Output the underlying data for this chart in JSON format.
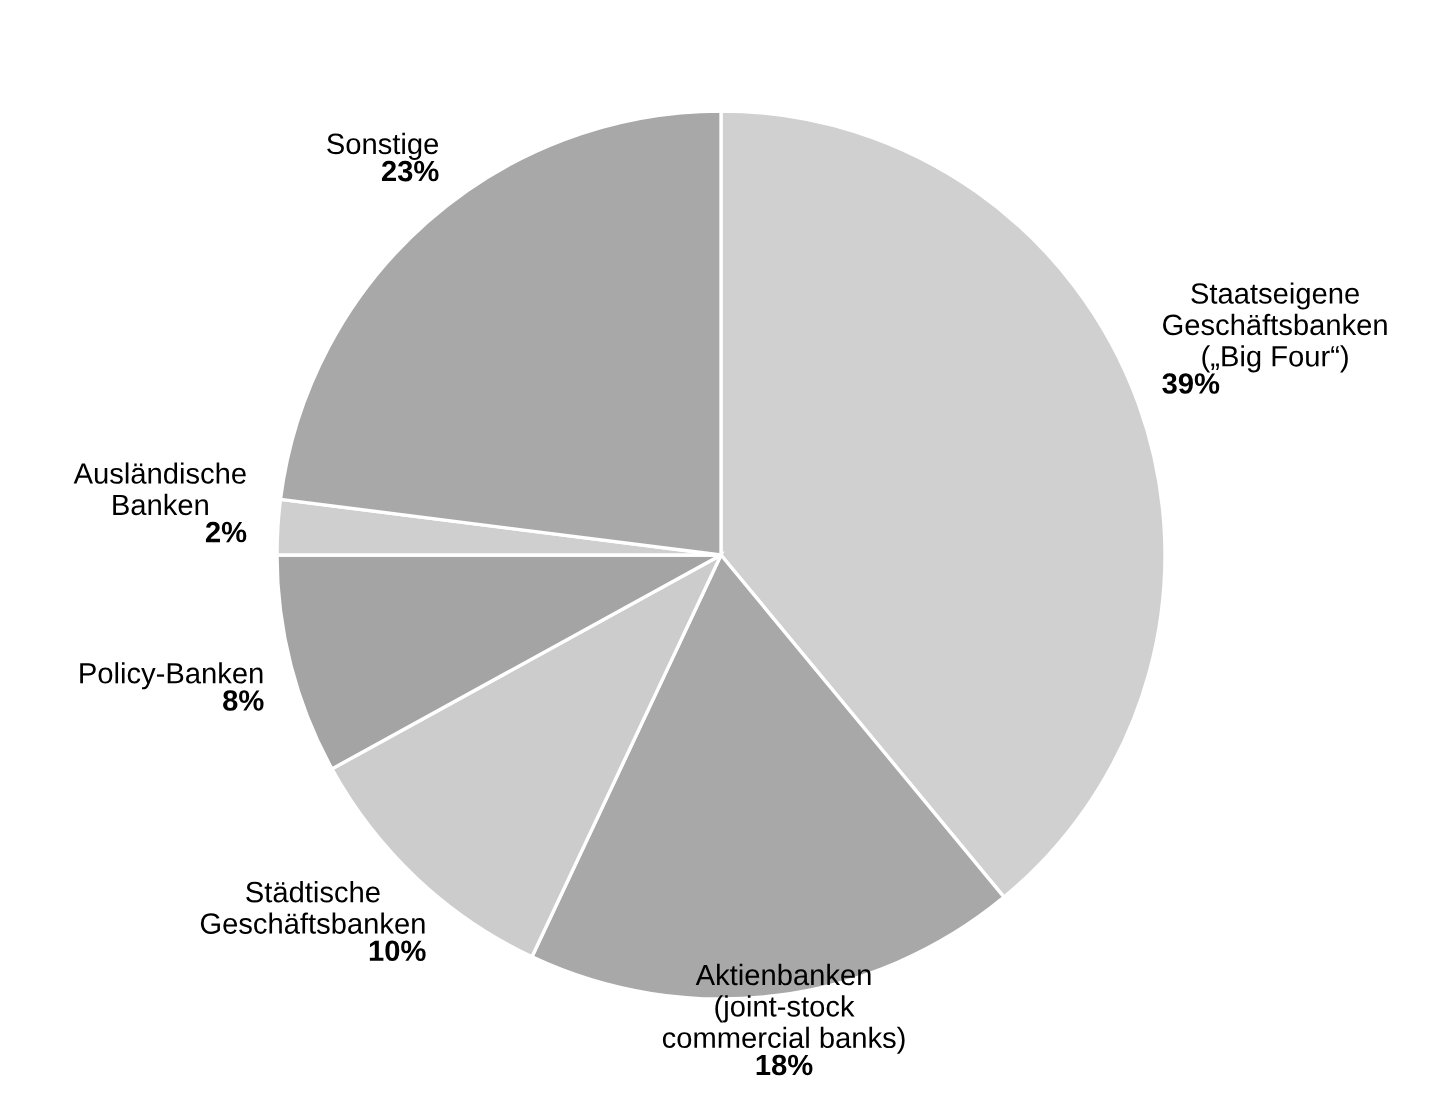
{
  "chart_data": {
    "type": "pie",
    "categories": [
      "Staatseigene\nGeschäftsbanken\n(„Big Four“)",
      "Aktienbanken\n(joint-stock\ncommercial banks)",
      "Städtische\nGeschäftsbanken",
      "Policy-Banken",
      "Ausländische\nBanken",
      "Sonstige"
    ],
    "values": [
      39,
      18,
      10,
      8,
      2,
      23
    ],
    "colors": [
      "#d0d0d0",
      "#a8a8a8",
      "#cccccc",
      "#a4a4a4",
      "#cfcfcf",
      "#a8a8a8"
    ],
    "value_labels": [
      "39%",
      "18%",
      "10%",
      "8%",
      "2%",
      "23%"
    ]
  }
}
